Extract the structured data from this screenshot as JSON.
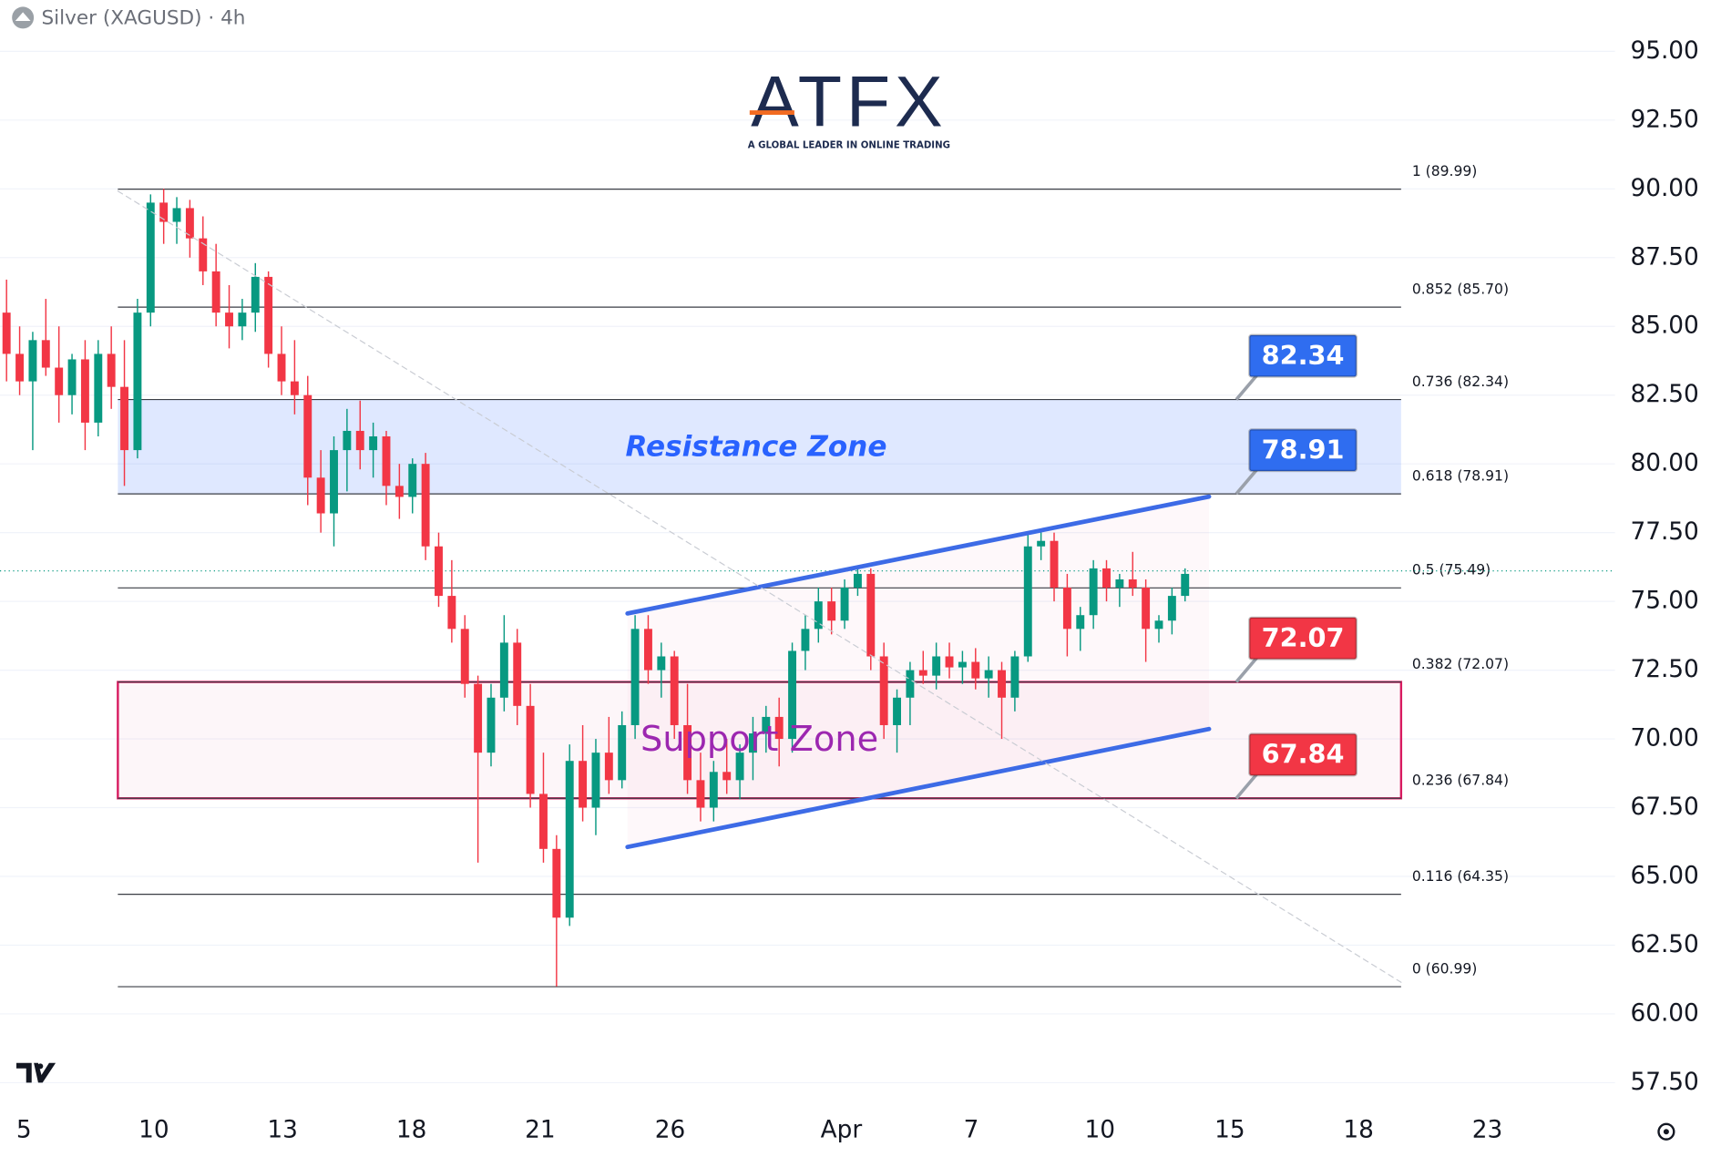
{
  "chart_data": {
    "type": "candlestick",
    "title": "Silver (XAGUSD) · 4h",
    "logo": {
      "brand": "ATFX",
      "tagline": "A GLOBAL LEADER IN ONLINE TRADING"
    },
    "up_color": "#089981",
    "down_color": "#f23645",
    "grid": true,
    "x": [
      0,
      1,
      2,
      3,
      4,
      5,
      6,
      7,
      8,
      9,
      10,
      11,
      12,
      13,
      14,
      15,
      16,
      17,
      18,
      19,
      20,
      21,
      22,
      23,
      24,
      25,
      26,
      27,
      28,
      29,
      30,
      31,
      32,
      33,
      34,
      35,
      36,
      37,
      38,
      39,
      40,
      41,
      42,
      43,
      44,
      45,
      46,
      47,
      48,
      49,
      50,
      51,
      52,
      53,
      54,
      55,
      56,
      57,
      58,
      59,
      60,
      61,
      62,
      63,
      64,
      65,
      66,
      67,
      68,
      69,
      70,
      71,
      72,
      73,
      74,
      75,
      76,
      77,
      78,
      79,
      80,
      81,
      82,
      83,
      84,
      85,
      86,
      87,
      88,
      89,
      90
    ],
    "open": [
      85.5,
      84.0,
      83.0,
      84.5,
      83.5,
      82.5,
      83.8,
      81.5,
      84.0,
      82.8,
      80.5,
      85.5,
      89.5,
      88.8,
      89.3,
      88.2,
      87.0,
      85.5,
      85.0,
      85.5,
      86.8,
      84.0,
      83.0,
      82.5,
      79.5,
      78.2,
      80.5,
      81.2,
      80.5,
      81.0,
      79.2,
      78.8,
      80.0,
      77.0,
      75.2,
      74.0,
      72.0,
      69.5,
      71.5,
      73.5,
      71.2,
      68.0,
      66.0,
      63.5,
      69.2,
      67.5,
      69.5,
      68.5,
      70.5,
      74.0,
      72.5,
      73.0,
      70.5,
      68.5,
      67.5,
      68.8,
      68.5,
      69.5,
      70.2,
      70.8,
      70.0,
      73.2,
      74.0,
      75.0,
      74.3,
      75.5,
      76.0,
      73.0,
      70.5,
      71.5,
      72.5,
      72.3,
      73.0,
      72.6,
      72.8,
      72.2,
      72.5,
      71.5,
      73.0,
      77.0,
      77.2,
      75.5,
      74.0,
      74.5,
      76.2,
      75.5,
      75.8,
      75.5,
      74.0,
      74.3,
      75.2
    ],
    "high": [
      86.7,
      85.0,
      84.8,
      86.0,
      85.0,
      84.0,
      84.5,
      84.5,
      85.0,
      84.5,
      86.0,
      89.8,
      90.0,
      89.7,
      89.6,
      89.0,
      88.0,
      86.5,
      86.0,
      87.3,
      87.0,
      85.0,
      84.5,
      83.2,
      80.5,
      81.0,
      82.0,
      82.3,
      81.5,
      81.2,
      80.0,
      80.2,
      80.4,
      77.5,
      76.5,
      74.5,
      72.3,
      72.0,
      74.5,
      74.0,
      72.0,
      69.5,
      66.5,
      69.8,
      70.5,
      70.0,
      70.8,
      71.0,
      74.5,
      74.5,
      73.5,
      73.2,
      72.0,
      69.5,
      69.2,
      70.0,
      69.8,
      70.8,
      71.2,
      71.5,
      73.5,
      74.5,
      75.5,
      75.5,
      75.8,
      76.3,
      76.2,
      73.5,
      71.8,
      72.8,
      73.2,
      73.5,
      73.5,
      73.2,
      73.3,
      73.0,
      72.8,
      73.2,
      77.5,
      77.6,
      77.5,
      76.0,
      74.8,
      76.5,
      76.5,
      76.0,
      76.8,
      75.8,
      74.5,
      75.5,
      76.2
    ],
    "low": [
      83.0,
      82.5,
      80.5,
      83.2,
      81.5,
      81.8,
      80.5,
      81.0,
      82.0,
      79.2,
      80.2,
      85.0,
      88.0,
      88.0,
      87.5,
      86.5,
      85.0,
      84.2,
      84.5,
      84.8,
      83.5,
      82.5,
      81.8,
      78.5,
      77.5,
      77.0,
      79.0,
      79.8,
      79.5,
      78.5,
      78.0,
      78.2,
      76.5,
      74.8,
      73.5,
      71.5,
      65.5,
      69.0,
      71.0,
      70.5,
      67.5,
      65.5,
      61.0,
      63.2,
      67.0,
      66.5,
      68.0,
      68.2,
      70.0,
      72.0,
      71.5,
      70.0,
      68.0,
      67.0,
      67.0,
      68.0,
      67.8,
      68.5,
      69.5,
      69.0,
      69.5,
      72.5,
      73.5,
      73.8,
      74.0,
      75.2,
      72.5,
      70.0,
      69.5,
      70.5,
      72.0,
      71.8,
      72.2,
      72.0,
      71.8,
      71.5,
      70.0,
      71.0,
      72.8,
      76.5,
      75.0,
      73.0,
      73.2,
      74.0,
      75.0,
      74.8,
      75.2,
      72.8,
      73.5,
      73.8,
      75.0
    ],
    "close": [
      84.0,
      83.0,
      84.5,
      83.5,
      82.5,
      83.8,
      81.5,
      84.0,
      82.8,
      80.5,
      85.5,
      89.5,
      88.8,
      89.3,
      88.2,
      87.0,
      85.5,
      85.0,
      85.5,
      86.8,
      84.0,
      83.0,
      82.5,
      79.5,
      78.2,
      80.5,
      81.2,
      80.5,
      81.0,
      79.2,
      78.8,
      80.0,
      77.0,
      75.2,
      74.0,
      72.0,
      69.5,
      71.5,
      73.5,
      71.2,
      68.0,
      66.0,
      63.5,
      69.2,
      67.5,
      69.5,
      68.5,
      70.5,
      74.0,
      72.5,
      73.0,
      70.5,
      68.5,
      67.5,
      68.8,
      68.5,
      69.5,
      70.2,
      70.8,
      70.0,
      73.2,
      74.0,
      75.0,
      74.3,
      75.5,
      76.0,
      73.0,
      70.5,
      71.5,
      72.5,
      72.3,
      73.0,
      72.6,
      72.8,
      72.2,
      72.5,
      71.5,
      73.0,
      77.0,
      77.2,
      75.5,
      74.0,
      74.5,
      76.2,
      75.5,
      75.8,
      75.5,
      74.0,
      74.3,
      75.2,
      76.0
    ],
    "xlim": [
      -0.5,
      122.83
    ],
    "xticks": [
      {
        "value": 1.33,
        "label": "5"
      },
      {
        "value": 11.25,
        "label": "10"
      },
      {
        "value": 21.08,
        "label": "13"
      },
      {
        "value": 30.92,
        "label": "18"
      },
      {
        "value": 40.75,
        "label": "21"
      },
      {
        "value": 50.67,
        "label": "26"
      },
      {
        "value": 63.75,
        "label": "Apr"
      },
      {
        "value": 73.67,
        "label": "7"
      },
      {
        "value": 83.5,
        "label": "10"
      },
      {
        "value": 93.42,
        "label": "15"
      },
      {
        "value": 103.25,
        "label": "18"
      },
      {
        "value": 113.08,
        "label": "23"
      }
    ],
    "ylim": [
      56.59,
      96.86
    ],
    "yticks": [
      {
        "value": 95,
        "label": "95.00"
      },
      {
        "value": 92.5,
        "label": "92.50"
      },
      {
        "value": 90,
        "label": "90.00"
      },
      {
        "value": 87.5,
        "label": "87.50"
      },
      {
        "value": 85,
        "label": "85.00"
      },
      {
        "value": 82.5,
        "label": "82.50"
      },
      {
        "value": 80,
        "label": "80.00"
      },
      {
        "value": 77.5,
        "label": "77.50"
      },
      {
        "value": 75,
        "label": "75.00"
      },
      {
        "value": 72.5,
        "label": "72.50"
      },
      {
        "value": 70,
        "label": "70.00"
      },
      {
        "value": 67.5,
        "label": "67.50"
      },
      {
        "value": 65,
        "label": "65.00"
      },
      {
        "value": 62.5,
        "label": "62.50"
      },
      {
        "value": 60,
        "label": "60.00"
      },
      {
        "value": 57.5,
        "label": "57.50"
      }
    ],
    "current_price": 76.11,
    "fib_levels": [
      {
        "label": "1 (89.99)",
        "value": 89.99
      },
      {
        "label": "0.852 (85.70)",
        "value": 85.7
      },
      {
        "label": "0.736 (82.34)",
        "value": 82.34
      },
      {
        "label": "0.618 (78.91)",
        "value": 78.91
      },
      {
        "label": "0.5 (75.49)",
        "value": 75.49
      },
      {
        "label": "0.382 (72.07)",
        "value": 72.07
      },
      {
        "label": "0.236 (67.84)",
        "value": 67.84
      },
      {
        "label": "0.116 (64.35)",
        "value": 64.35
      },
      {
        "label": "0 (60.99)",
        "value": 60.99
      }
    ],
    "zones": [
      {
        "label": "Resistance Zone",
        "low": 78.91,
        "high": 82.34,
        "color": "#2962ff"
      },
      {
        "label": "Support Zone",
        "low": 67.84,
        "high": 72.07,
        "color": "#d81b60"
      }
    ],
    "trend_lines": [
      {
        "x": [
          47.42,
          91.83
        ],
        "values": [
          74.56,
          78.81
        ],
        "color": "#3d6be6"
      },
      {
        "x": [
          47.42,
          91.83
        ],
        "values": [
          66.07,
          70.36
        ],
        "color": "#3d6be6"
      },
      {
        "x": [
          8.5,
          106.5
        ],
        "values": [
          89.92,
          61.15
        ],
        "color": "#c9ccd3",
        "dashed": true
      }
    ],
    "callouts": [
      {
        "value": 82.34,
        "color": "#2f6df0"
      },
      {
        "value": 78.91,
        "color": "#2f6df0"
      },
      {
        "value": 72.07,
        "color": "#f23645"
      },
      {
        "value": 67.84,
        "color": "#f23645"
      }
    ]
  }
}
